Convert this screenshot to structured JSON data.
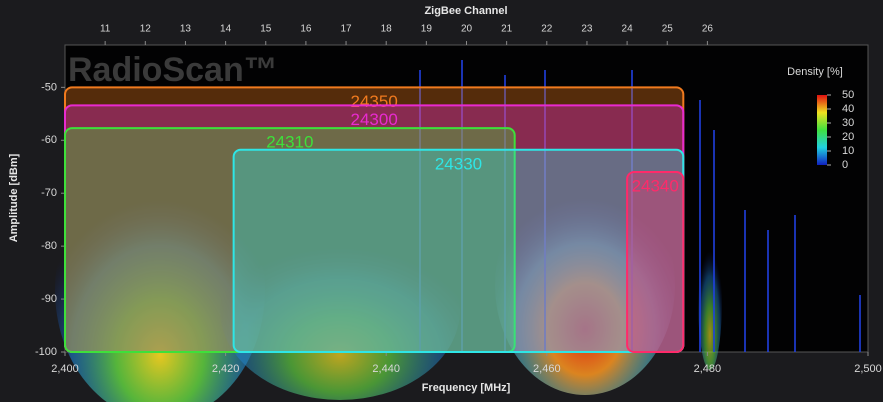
{
  "chart_data": {
    "type": "spectrum",
    "watermark": "RadioScan™",
    "top_axis_title": "ZigBee Channel",
    "x_label": "Frequency [MHz]",
    "y_label": "Amplitude [dBm]",
    "xlim": [
      2400,
      2500
    ],
    "ylim": [
      -100,
      -42
    ],
    "xticks": [
      {
        "value": 2400,
        "label": "2,400"
      },
      {
        "value": 2420,
        "label": "2,420"
      },
      {
        "value": 2440,
        "label": "2,440"
      },
      {
        "value": 2460,
        "label": "2,460"
      },
      {
        "value": 2480,
        "label": "2,480"
      },
      {
        "value": 2500,
        "label": "2,500"
      }
    ],
    "yticks": [
      -100,
      -90,
      -80,
      -70,
      -60,
      -50
    ],
    "channel_ticks": [
      {
        "value": 2405,
        "label": "11"
      },
      {
        "value": 2410,
        "label": "12"
      },
      {
        "value": 2415,
        "label": "13"
      },
      {
        "value": 2420,
        "label": "14"
      },
      {
        "value": 2425,
        "label": "15"
      },
      {
        "value": 2430,
        "label": "16"
      },
      {
        "value": 2435,
        "label": "17"
      },
      {
        "value": 2440,
        "label": "18"
      },
      {
        "value": 2445,
        "label": "19"
      },
      {
        "value": 2450,
        "label": "20"
      },
      {
        "value": 2455,
        "label": "21"
      },
      {
        "value": 2460,
        "label": "22"
      },
      {
        "value": 2465,
        "label": "23"
      },
      {
        "value": 2470,
        "label": "24"
      },
      {
        "value": 2475,
        "label": "25"
      },
      {
        "value": 2480,
        "label": "26"
      }
    ],
    "colorbar_title": "Density [%]",
    "colorbar_lim": [
      0,
      50
    ],
    "colorbar_ticks": [
      0,
      10,
      20,
      30,
      40,
      50
    ],
    "zones": [
      {
        "label": "24350",
        "color": "#f07a1e",
        "x": [
          2400,
          2477
        ],
        "y": [
          -100,
          -50
        ]
      },
      {
        "label": "24300",
        "color": "#e82ad0",
        "x": [
          2400,
          2477
        ],
        "y": [
          -100,
          -53.4
        ]
      },
      {
        "label": "24310",
        "color": "#3ee03a",
        "x": [
          2400,
          2456
        ],
        "y": [
          -100,
          -57.7
        ]
      },
      {
        "label": "24330",
        "color": "#2ee6e6",
        "x": [
          2421,
          2477
        ],
        "y": [
          -100,
          -61.8
        ]
      },
      {
        "label": "24340",
        "color": "#ff2a6a",
        "x": [
          2470,
          2477
        ],
        "y": [
          -100,
          -66
        ]
      }
    ]
  }
}
